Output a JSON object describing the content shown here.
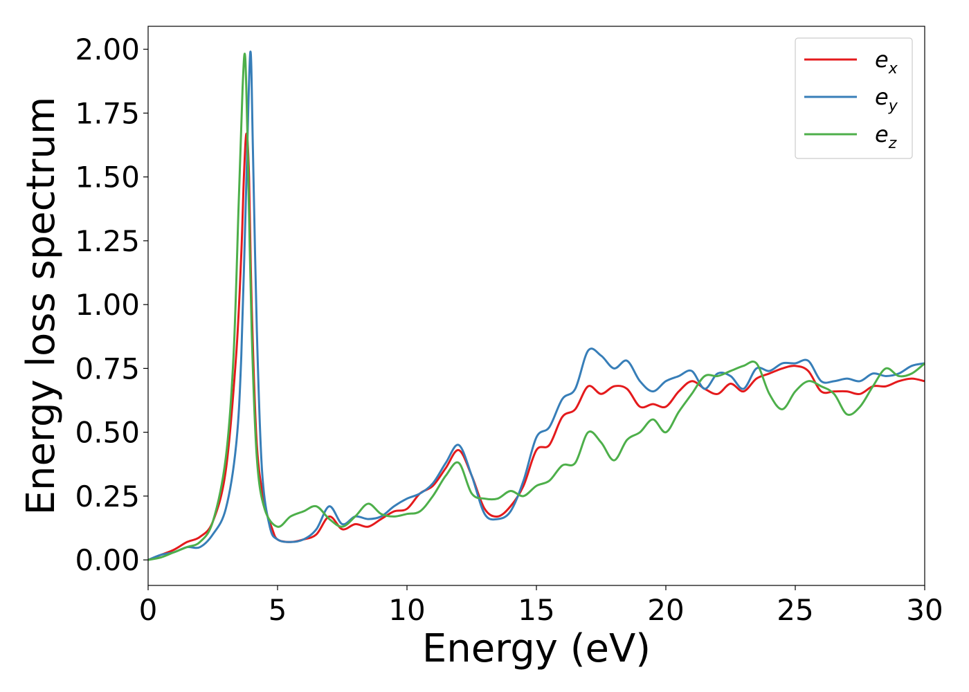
{
  "chart_data": {
    "type": "line",
    "title": "",
    "xlabel": "Energy (eV)",
    "ylabel": "Energy loss spectrum",
    "xlim": [
      0,
      30
    ],
    "ylim": [
      -0.1,
      2.09
    ],
    "xticks": [
      "0",
      "5",
      "10",
      "15",
      "20",
      "25",
      "30"
    ],
    "yticks": [
      "0.00",
      "0.25",
      "0.50",
      "0.75",
      "1.00",
      "1.25",
      "1.50",
      "1.75",
      "2.00"
    ],
    "grid": false,
    "legend_position": "top-right",
    "series": [
      {
        "name": "e_x",
        "label_base": "e",
        "label_sub": "x",
        "color": "#e41a1c",
        "points": [
          [
            0,
            0
          ],
          [
            0.5,
            0.02
          ],
          [
            1,
            0.04
          ],
          [
            1.5,
            0.07
          ],
          [
            2,
            0.09
          ],
          [
            2.5,
            0.15
          ],
          [
            3,
            0.35
          ],
          [
            3.4,
            0.8
          ],
          [
            3.6,
            1.2
          ],
          [
            3.7,
            1.5
          ],
          [
            3.8,
            1.67
          ],
          [
            3.9,
            1.5
          ],
          [
            4.0,
            1.0
          ],
          [
            4.2,
            0.45
          ],
          [
            4.5,
            0.22
          ],
          [
            4.8,
            0.12
          ],
          [
            5,
            0.08
          ],
          [
            5.5,
            0.07
          ],
          [
            6,
            0.08
          ],
          [
            6.5,
            0.1
          ],
          [
            7,
            0.17
          ],
          [
            7.5,
            0.12
          ],
          [
            8,
            0.14
          ],
          [
            8.5,
            0.13
          ],
          [
            9,
            0.16
          ],
          [
            9.5,
            0.19
          ],
          [
            10,
            0.2
          ],
          [
            10.5,
            0.26
          ],
          [
            11,
            0.29
          ],
          [
            11.5,
            0.36
          ],
          [
            12,
            0.43
          ],
          [
            12.5,
            0.33
          ],
          [
            13,
            0.2
          ],
          [
            13.5,
            0.17
          ],
          [
            14,
            0.21
          ],
          [
            14.5,
            0.29
          ],
          [
            15,
            0.43
          ],
          [
            15.5,
            0.45
          ],
          [
            16,
            0.56
          ],
          [
            16.5,
            0.59
          ],
          [
            17,
            0.68
          ],
          [
            17.5,
            0.65
          ],
          [
            18,
            0.68
          ],
          [
            18.5,
            0.67
          ],
          [
            19,
            0.6
          ],
          [
            19.5,
            0.61
          ],
          [
            20,
            0.6
          ],
          [
            20.5,
            0.66
          ],
          [
            21,
            0.7
          ],
          [
            21.5,
            0.67
          ],
          [
            22,
            0.65
          ],
          [
            22.5,
            0.69
          ],
          [
            23,
            0.66
          ],
          [
            23.5,
            0.71
          ],
          [
            24,
            0.73
          ],
          [
            24.5,
            0.75
          ],
          [
            25,
            0.76
          ],
          [
            25.5,
            0.74
          ],
          [
            26,
            0.66
          ],
          [
            26.5,
            0.66
          ],
          [
            27,
            0.66
          ],
          [
            27.5,
            0.65
          ],
          [
            28,
            0.68
          ],
          [
            28.5,
            0.68
          ],
          [
            29,
            0.7
          ],
          [
            29.5,
            0.71
          ],
          [
            30,
            0.7
          ]
        ]
      },
      {
        "name": "e_y",
        "label_base": "e",
        "label_sub": "y",
        "color": "#377eb8",
        "points": [
          [
            0,
            0
          ],
          [
            0.5,
            0.02
          ],
          [
            1,
            0.03
          ],
          [
            1.5,
            0.05
          ],
          [
            2,
            0.05
          ],
          [
            2.5,
            0.1
          ],
          [
            3,
            0.2
          ],
          [
            3.4,
            0.45
          ],
          [
            3.6,
            0.8
          ],
          [
            3.8,
            1.5
          ],
          [
            3.95,
            1.99
          ],
          [
            4.05,
            1.6
          ],
          [
            4.2,
            0.9
          ],
          [
            4.4,
            0.35
          ],
          [
            4.7,
            0.13
          ],
          [
            5,
            0.08
          ],
          [
            5.5,
            0.07
          ],
          [
            6,
            0.08
          ],
          [
            6.5,
            0.12
          ],
          [
            7,
            0.21
          ],
          [
            7.5,
            0.14
          ],
          [
            8,
            0.17
          ],
          [
            8.5,
            0.16
          ],
          [
            9,
            0.17
          ],
          [
            9.5,
            0.21
          ],
          [
            10,
            0.24
          ],
          [
            10.5,
            0.26
          ],
          [
            11,
            0.3
          ],
          [
            11.5,
            0.38
          ],
          [
            12,
            0.45
          ],
          [
            12.5,
            0.33
          ],
          [
            13,
            0.18
          ],
          [
            13.5,
            0.16
          ],
          [
            14,
            0.19
          ],
          [
            14.5,
            0.31
          ],
          [
            15,
            0.48
          ],
          [
            15.5,
            0.52
          ],
          [
            16,
            0.63
          ],
          [
            16.5,
            0.67
          ],
          [
            17,
            0.82
          ],
          [
            17.5,
            0.8
          ],
          [
            18,
            0.75
          ],
          [
            18.5,
            0.78
          ],
          [
            19,
            0.7
          ],
          [
            19.5,
            0.66
          ],
          [
            20,
            0.7
          ],
          [
            20.5,
            0.72
          ],
          [
            21,
            0.74
          ],
          [
            21.5,
            0.67
          ],
          [
            22,
            0.73
          ],
          [
            22.5,
            0.72
          ],
          [
            23,
            0.67
          ],
          [
            23.5,
            0.75
          ],
          [
            24,
            0.74
          ],
          [
            24.5,
            0.77
          ],
          [
            25,
            0.77
          ],
          [
            25.5,
            0.78
          ],
          [
            26,
            0.7
          ],
          [
            26.5,
            0.7
          ],
          [
            27,
            0.71
          ],
          [
            27.5,
            0.7
          ],
          [
            28,
            0.73
          ],
          [
            28.5,
            0.72
          ],
          [
            29,
            0.73
          ],
          [
            29.5,
            0.76
          ],
          [
            30,
            0.77
          ]
        ]
      },
      {
        "name": "e_z",
        "label_base": "e",
        "label_sub": "z",
        "color": "#4daf4a",
        "points": [
          [
            0,
            0
          ],
          [
            0.5,
            0.01
          ],
          [
            1,
            0.03
          ],
          [
            1.5,
            0.05
          ],
          [
            2,
            0.07
          ],
          [
            2.5,
            0.15
          ],
          [
            3,
            0.4
          ],
          [
            3.3,
            0.8
          ],
          [
            3.5,
            1.4
          ],
          [
            3.65,
            1.85
          ],
          [
            3.75,
            1.97
          ],
          [
            3.85,
            1.6
          ],
          [
            4.0,
            0.9
          ],
          [
            4.2,
            0.4
          ],
          [
            4.5,
            0.2
          ],
          [
            5,
            0.13
          ],
          [
            5.5,
            0.17
          ],
          [
            6,
            0.19
          ],
          [
            6.5,
            0.21
          ],
          [
            7,
            0.16
          ],
          [
            7.5,
            0.13
          ],
          [
            8,
            0.17
          ],
          [
            8.5,
            0.22
          ],
          [
            9,
            0.18
          ],
          [
            9.5,
            0.17
          ],
          [
            10,
            0.18
          ],
          [
            10.5,
            0.19
          ],
          [
            11,
            0.25
          ],
          [
            11.5,
            0.33
          ],
          [
            12,
            0.38
          ],
          [
            12.5,
            0.26
          ],
          [
            13,
            0.24
          ],
          [
            13.5,
            0.24
          ],
          [
            14,
            0.27
          ],
          [
            14.5,
            0.25
          ],
          [
            15,
            0.29
          ],
          [
            15.5,
            0.31
          ],
          [
            16,
            0.37
          ],
          [
            16.5,
            0.38
          ],
          [
            17,
            0.5
          ],
          [
            17.5,
            0.46
          ],
          [
            18,
            0.39
          ],
          [
            18.5,
            0.47
          ],
          [
            19,
            0.5
          ],
          [
            19.5,
            0.55
          ],
          [
            20,
            0.5
          ],
          [
            20.5,
            0.58
          ],
          [
            21,
            0.65
          ],
          [
            21.5,
            0.72
          ],
          [
            22,
            0.72
          ],
          [
            22.5,
            0.74
          ],
          [
            23,
            0.76
          ],
          [
            23.5,
            0.77
          ],
          [
            24,
            0.65
          ],
          [
            24.5,
            0.59
          ],
          [
            25,
            0.66
          ],
          [
            25.5,
            0.7
          ],
          [
            26,
            0.68
          ],
          [
            26.5,
            0.65
          ],
          [
            27,
            0.57
          ],
          [
            27.5,
            0.6
          ],
          [
            28,
            0.68
          ],
          [
            28.5,
            0.75
          ],
          [
            29,
            0.72
          ],
          [
            29.5,
            0.73
          ],
          [
            30,
            0.77
          ]
        ]
      }
    ]
  }
}
